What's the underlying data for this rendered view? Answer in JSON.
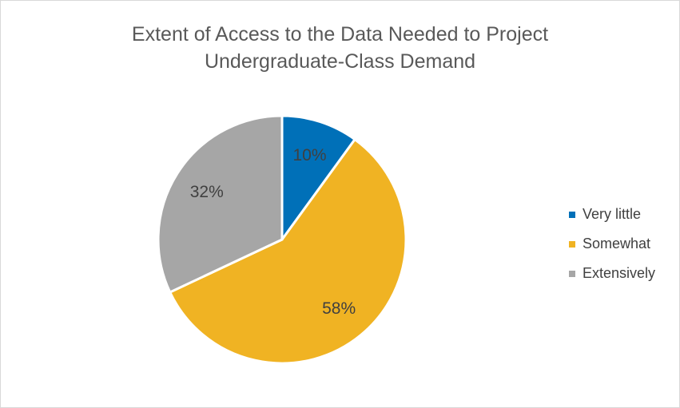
{
  "chart_data": {
    "type": "pie",
    "title_lines": [
      "Extent of Access to the Data Needed to Project",
      "Undergraduate-Class Demand"
    ],
    "slices": [
      {
        "label": "Very little",
        "value": 10,
        "display": "10%",
        "color": "#0070b8"
      },
      {
        "label": "Somewhat",
        "value": 58,
        "display": "58%",
        "color": "#f0b323"
      },
      {
        "label": "Extensively",
        "value": 32,
        "display": "32%",
        "color": "#a6a6a6"
      }
    ],
    "legend_position": "right",
    "start_angle": "12 o'clock",
    "direction": "clockwise"
  }
}
